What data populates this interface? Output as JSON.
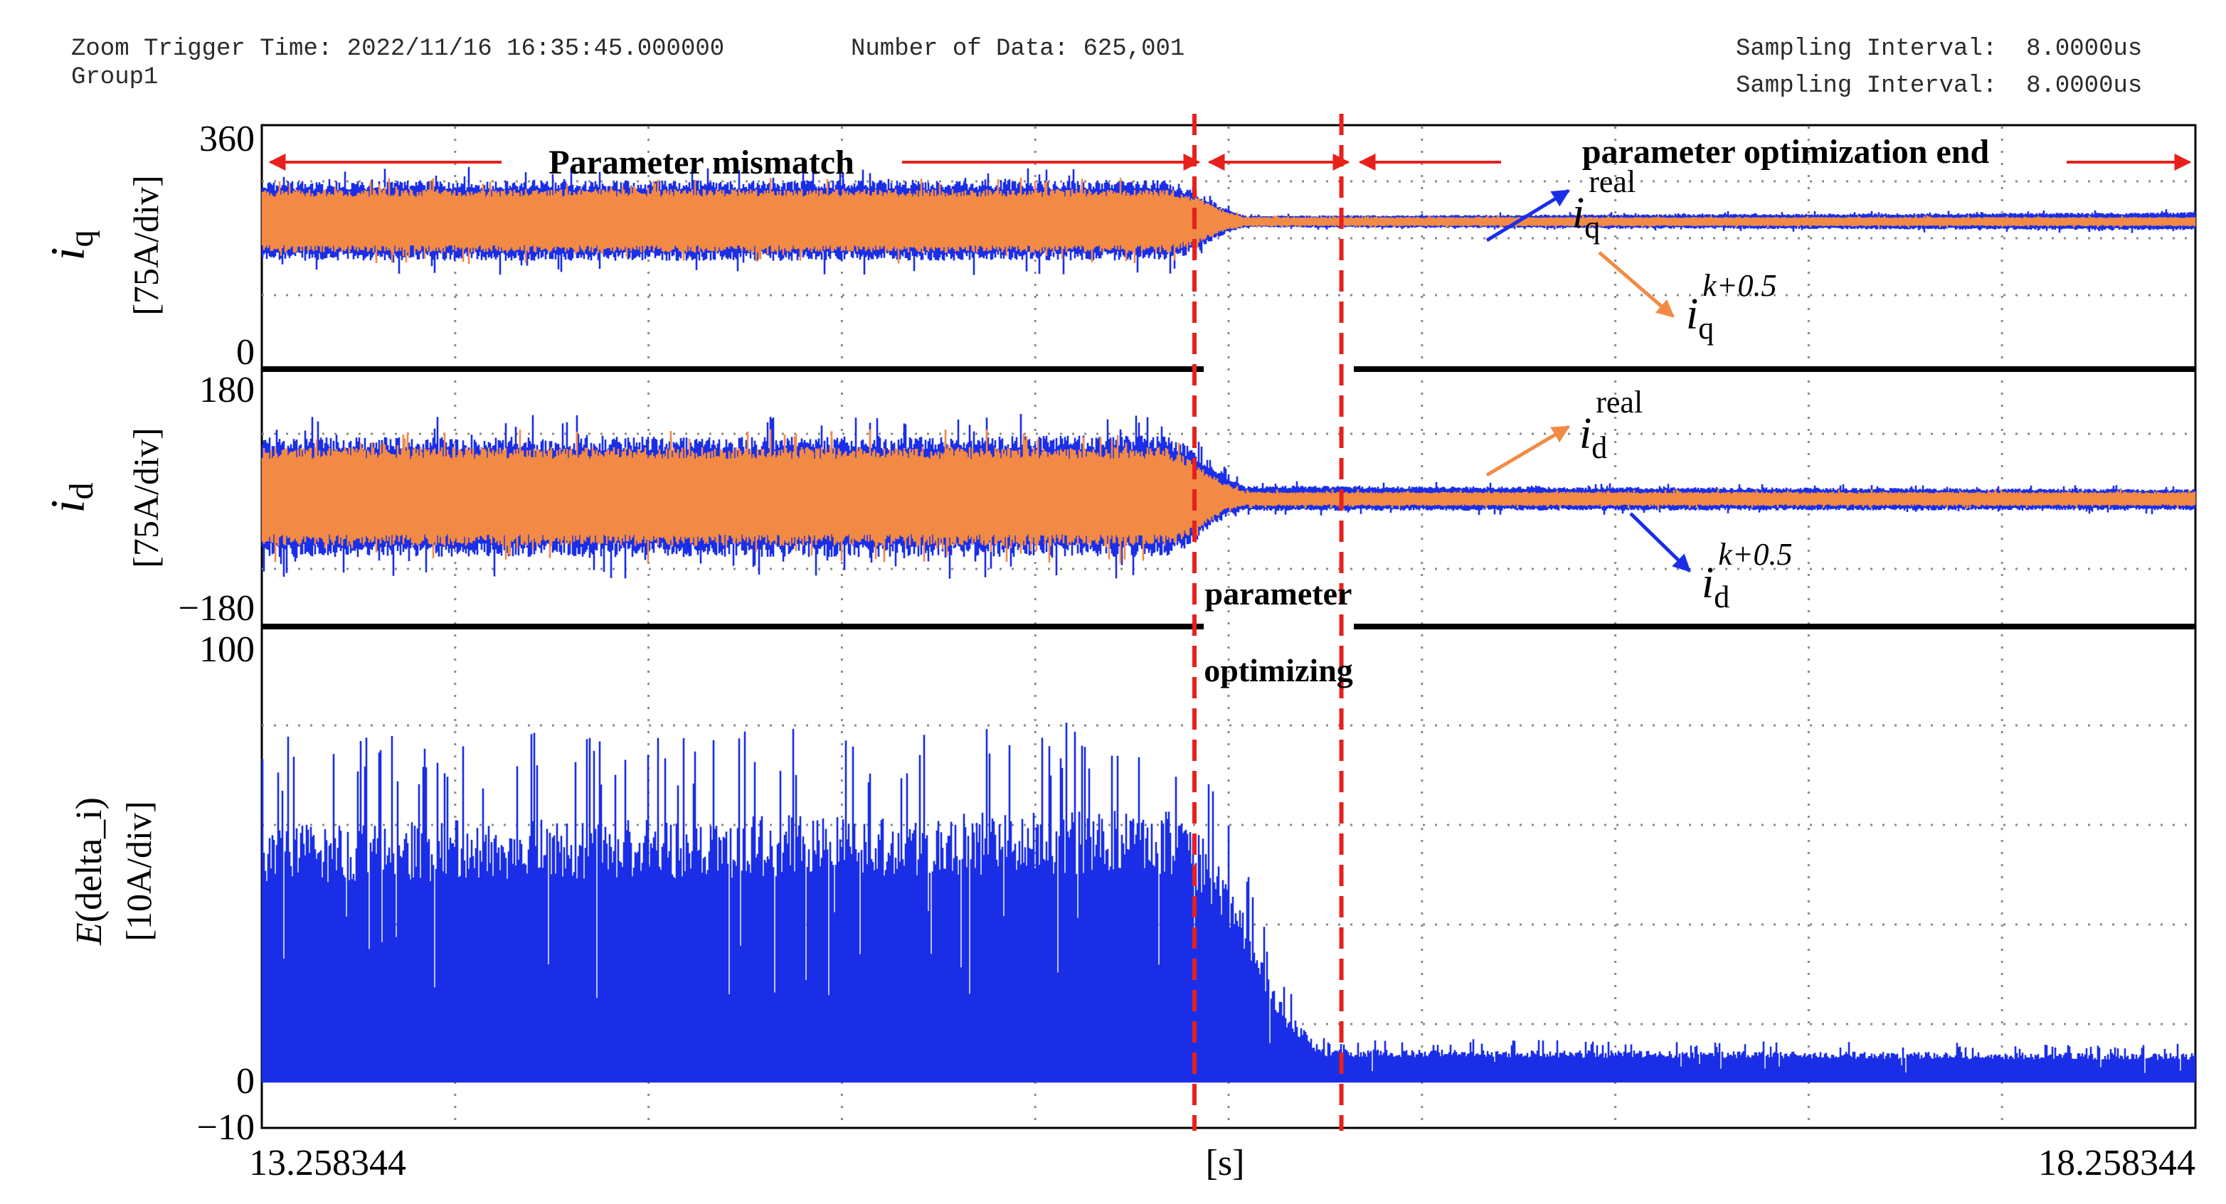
{
  "header": {
    "zoom_trigger_time": "Zoom Trigger Time: 2022/11/16 16:35:45.000000",
    "number_of_data": "Number of Data: 625,001",
    "group": "Group1",
    "sampling_interval_1": "Sampling Interval:  8.0000us",
    "sampling_interval_2": "Sampling Interval:  8.0000us"
  },
  "colors": {
    "real": "#1a2ee8",
    "predicted": "#f28a45",
    "marker": "#e8201c",
    "grid": "#8a8a8a",
    "frame": "#000000"
  },
  "chart_data": [
    {
      "id": "iq",
      "type": "line",
      "ylabel": "i_q [75A/div]",
      "ylabel_symbol": "i",
      "ylabel_sub": "q",
      "ylabel_unit": "[75A/div]",
      "ylim": [
        0,
        360
      ],
      "ytick_labels": [
        "360",
        "0"
      ],
      "xlim": [
        13.258344,
        18.258344
      ],
      "grid": true,
      "series": [
        {
          "name": "i_q^real",
          "color": "#1a2ee8",
          "envelope": [
            {
              "x": 13.258344,
              "lo": 160,
              "hi": 280
            },
            {
              "x": 15.6,
              "lo": 160,
              "hi": 282
            },
            {
              "x": 15.65,
              "lo": 168,
              "hi": 272
            },
            {
              "x": 15.75,
              "lo": 200,
              "hi": 240
            },
            {
              "x": 15.8,
              "lo": 210,
              "hi": 228
            },
            {
              "x": 18.258344,
              "lo": 206,
              "hi": 233
            }
          ]
        },
        {
          "name": "i_q^(k+0.5)",
          "color": "#f28a45",
          "envelope": [
            {
              "x": 13.258344,
              "lo": 172,
              "hi": 268
            },
            {
              "x": 15.6,
              "lo": 172,
              "hi": 268
            },
            {
              "x": 15.65,
              "lo": 180,
              "hi": 262
            },
            {
              "x": 15.75,
              "lo": 205,
              "hi": 235
            },
            {
              "x": 15.8,
              "lo": 212,
              "hi": 226
            },
            {
              "x": 18.258344,
              "lo": 212,
              "hi": 226
            }
          ]
        }
      ]
    },
    {
      "id": "id",
      "type": "line",
      "ylabel": "i_d [75A/div]",
      "ylabel_symbol": "i",
      "ylabel_sub": "d",
      "ylabel_unit": "[75A/div]",
      "ylim": [
        -180,
        180
      ],
      "ytick_labels": [
        "180",
        "−180"
      ],
      "xlim": [
        13.258344,
        18.258344
      ],
      "grid": true,
      "series": [
        {
          "name": "i_d^real",
          "color": "#1a2ee8",
          "envelope": [
            {
              "x": 13.258344,
              "lo": -82,
              "hi": 92
            },
            {
              "x": 15.6,
              "lo": -82,
              "hi": 95
            },
            {
              "x": 15.65,
              "lo": -70,
              "hi": 82
            },
            {
              "x": 15.75,
              "lo": -25,
              "hi": 40
            },
            {
              "x": 15.8,
              "lo": -15,
              "hi": 22
            },
            {
              "x": 18.258344,
              "lo": -14,
              "hi": 17
            }
          ]
        },
        {
          "name": "i_d^(k+0.5)",
          "color": "#f28a45",
          "envelope": [
            {
              "x": 13.258344,
              "lo": -66,
              "hi": 78
            },
            {
              "x": 15.6,
              "lo": -66,
              "hi": 78
            },
            {
              "x": 15.65,
              "lo": -55,
              "hi": 62
            },
            {
              "x": 15.75,
              "lo": -15,
              "hi": 25
            },
            {
              "x": 15.8,
              "lo": -8,
              "hi": 13
            },
            {
              "x": 18.258344,
              "lo": -8,
              "hi": 13
            }
          ]
        }
      ]
    },
    {
      "id": "err",
      "type": "area",
      "ylabel": "E(delta_i) [10A/div]",
      "ylabel_fn": "E",
      "ylabel_arg": "(delta_i)",
      "ylabel_unit": "[10A/div]",
      "ylim": [
        -10,
        100
      ],
      "ytick_labels": [
        "100",
        "0",
        "−10"
      ],
      "xlim": [
        13.258344,
        18.258344
      ],
      "xtick_labels": [
        "13.258344",
        "[s]",
        "18.258344"
      ],
      "grid": true,
      "series": [
        {
          "name": "E(delta_i)",
          "color": "#1a2ee8",
          "envelope": [
            {
              "x": 13.258344,
              "lo": 0,
              "hi": 62
            },
            {
              "x": 15.6,
              "lo": 0,
              "hi": 65
            },
            {
              "x": 15.7,
              "lo": 0,
              "hi": 58
            },
            {
              "x": 15.8,
              "lo": 0,
              "hi": 40
            },
            {
              "x": 15.9,
              "lo": 0,
              "hi": 18
            },
            {
              "x": 16.0,
              "lo": 0,
              "hi": 8
            },
            {
              "x": 18.258344,
              "lo": 0,
              "hi": 7
            }
          ]
        }
      ]
    }
  ],
  "phases": {
    "optimizing_start": 15.67,
    "optimizing_end": 16.05
  },
  "annotations": {
    "parameter_mismatch": "Parameter mismatch",
    "optimization_end": "parameter optimization end",
    "optimizing_line1": "parameter",
    "optimizing_line2": "optimizing",
    "iq_real": {
      "symbol": "i",
      "sub": "q",
      "sup": "real"
    },
    "iq_pred": {
      "symbol": "i",
      "sub": "q",
      "sup": "k+0.5"
    },
    "id_real": {
      "symbol": "i",
      "sub": "d",
      "sup": "real"
    },
    "id_pred": {
      "symbol": "i",
      "sub": "d",
      "sup": "k+0.5"
    }
  }
}
